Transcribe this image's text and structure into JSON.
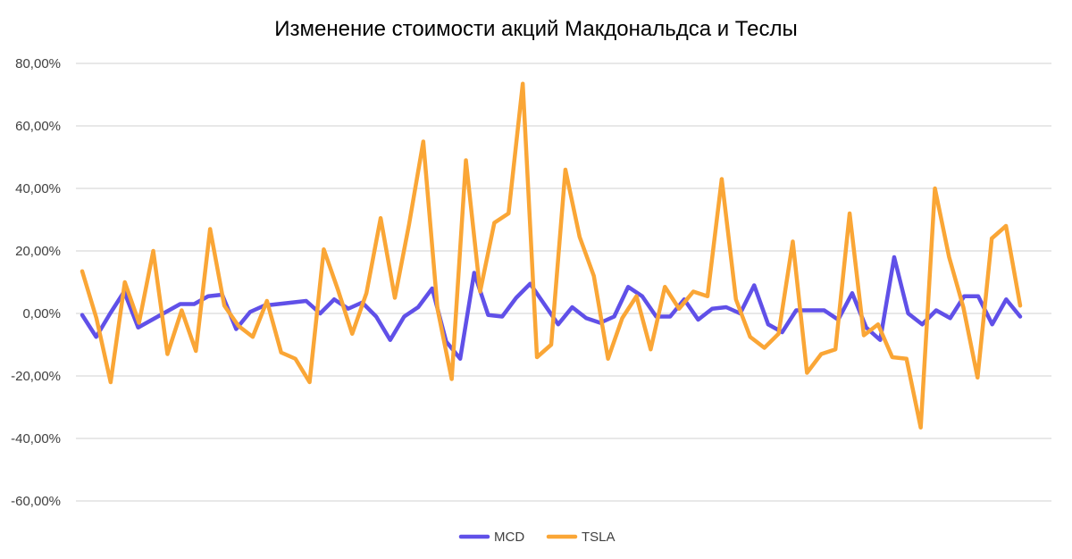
{
  "chart_data": {
    "type": "line",
    "title": "Изменение стоимости акций Макдональдса и Теслы",
    "xlabel": "",
    "ylabel": "",
    "ylim": [
      -60,
      80
    ],
    "yticks": [
      80,
      60,
      40,
      20,
      0,
      -20,
      -40,
      -60
    ],
    "ytick_labels": [
      "80,00%",
      "60,00%",
      "40,00%",
      "20,00%",
      "0,00%",
      "-20,00%",
      "-40,00%",
      "-60,00%"
    ],
    "y_unit": "%",
    "grid": true,
    "legend_position": "bottom",
    "series": [
      {
        "name": "MCD",
        "color": "#6050e8",
        "values": [
          -0.5,
          -7.5,
          0,
          7,
          -4.5,
          -2,
          0.5,
          3,
          3,
          5.5,
          6,
          -5,
          0.5,
          2.5,
          3,
          3.5,
          4,
          0,
          4.5,
          1.5,
          3.5,
          -1,
          -8.5,
          -1,
          2,
          8,
          -9,
          -14.5,
          13,
          -0.5,
          -1,
          5,
          9.5,
          3,
          -3.5,
          2,
          -1.5,
          -3,
          -1,
          8.5,
          5.5,
          -1,
          -1,
          4.5,
          -2,
          1.5,
          2,
          0,
          9,
          -3.5,
          -6,
          1,
          1,
          1,
          -2,
          6.5,
          -4.5,
          -8.5,
          18,
          0,
          -3.5,
          1,
          -1.5,
          5.5,
          5.5,
          -3.5,
          4.5,
          -1
        ]
      },
      {
        "name": "TSLA",
        "color": "#faa636",
        "values": [
          13.5,
          -1.5,
          -22,
          10,
          -3,
          20,
          -13,
          1,
          -12,
          27,
          2.5,
          -4,
          -7.5,
          4,
          -12.5,
          -14.5,
          -22,
          20.5,
          7.5,
          -6.5,
          6.5,
          30.5,
          5,
          28.5,
          55,
          1.5,
          -21,
          49,
          7,
          29,
          32,
          73.5,
          -14,
          -10,
          46,
          24.5,
          12,
          -14.5,
          -1.5,
          5.5,
          -11.5,
          8.5,
          1.5,
          7,
          5.5,
          43,
          4.5,
          -7.5,
          -11,
          -6.5,
          23,
          -19,
          -13,
          -11.5,
          32,
          -7,
          -3.5,
          -14,
          -14.5,
          -36.5,
          40,
          18,
          2,
          -20.5,
          24,
          28,
          2.5
        ]
      }
    ]
  }
}
